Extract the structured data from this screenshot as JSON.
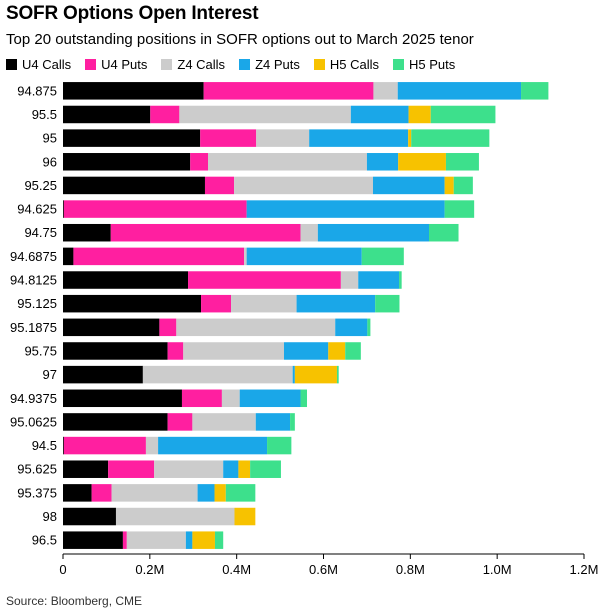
{
  "chart_data": {
    "type": "bar",
    "orientation": "horizontal",
    "stacked": true,
    "title": "SOFR Options Open Interest",
    "subtitle": "Top 20 outstanding positions in SOFR options out to March 2025 tenor",
    "source": "Source: Bloomberg, CME",
    "xlim": [
      0,
      1200000
    ],
    "xticks": [
      0,
      200000,
      400000,
      600000,
      800000,
      1000000,
      1200000
    ],
    "xtick_labels": [
      "0",
      "0.2M",
      "0.4M",
      "0.6M",
      "0.8M",
      "1.0M",
      "1.2M"
    ],
    "legend_position": "top",
    "categories": [
      "94.875",
      "95.5",
      "95",
      "96",
      "95.25",
      "94.625",
      "94.75",
      "94.6875",
      "94.8125",
      "95.125",
      "95.1875",
      "95.75",
      "97",
      "94.9375",
      "95.0625",
      "94.5",
      "95.625",
      "95.375",
      "98",
      "96.5"
    ],
    "series": [
      {
        "name": "U4 Calls",
        "color": "#000000",
        "values": [
          324000,
          201000,
          316000,
          293000,
          327000,
          2000,
          110000,
          24000,
          288000,
          318000,
          222000,
          241000,
          184000,
          274000,
          241000,
          2000,
          104000,
          66000,
          122000,
          138000
        ]
      },
      {
        "name": "U4 Puts",
        "color": "#ff1fa0",
        "values": [
          391000,
          67000,
          129000,
          41000,
          67000,
          421000,
          437000,
          393000,
          352000,
          69000,
          39000,
          36000,
          0,
          92000,
          57000,
          189000,
          106000,
          46000,
          0,
          9000
        ]
      },
      {
        "name": "Z4 Calls",
        "color": "#cccccc",
        "values": [
          56000,
          395000,
          122000,
          366000,
          320000,
          0,
          40000,
          6000,
          40000,
          151000,
          366000,
          232000,
          345000,
          41000,
          146000,
          28000,
          159000,
          198000,
          273000,
          136000
        ]
      },
      {
        "name": "Z4 Puts",
        "color": "#1aa7e8",
        "values": [
          284000,
          133000,
          228000,
          72000,
          165000,
          456000,
          256000,
          265000,
          94000,
          181000,
          74000,
          102000,
          5000,
          140000,
          79000,
          251000,
          35000,
          39000,
          0,
          15000
        ]
      },
      {
        "name": "H5 Calls",
        "color": "#f7c200",
        "values": [
          0,
          51000,
          7000,
          110000,
          21000,
          0,
          0,
          0,
          0,
          0,
          0,
          39000,
          97000,
          0,
          0,
          0,
          27000,
          26000,
          48000,
          52000
        ]
      },
      {
        "name": "H5 Puts",
        "color": "#3de08c",
        "values": [
          63000,
          149000,
          180000,
          76000,
          44000,
          68000,
          68000,
          97000,
          6000,
          56000,
          7000,
          36000,
          4000,
          15000,
          11000,
          56000,
          71000,
          68000,
          0,
          19000
        ]
      }
    ]
  }
}
